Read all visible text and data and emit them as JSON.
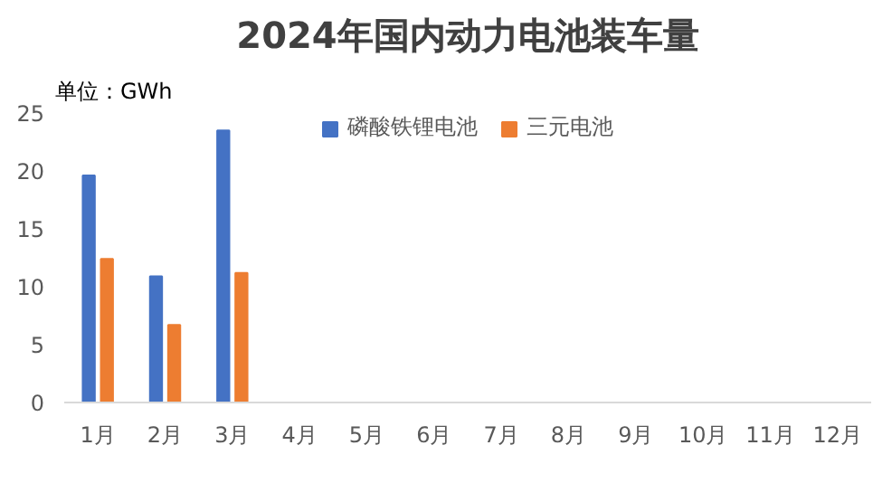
{
  "chart_data": {
    "type": "bar",
    "title": "2024年国内动力电池装车量",
    "annotations": [
      "单位：GWh"
    ],
    "categories": [
      "1月",
      "2月",
      "3月",
      "4月",
      "5月",
      "6月",
      "7月",
      "8月",
      "9月",
      "10月",
      "11月",
      "12月"
    ],
    "series": [
      {
        "name": "磷酸铁锂电池",
        "color": "#4472c4",
        "values": [
          19.6,
          10.9,
          23.5,
          null,
          null,
          null,
          null,
          null,
          null,
          null,
          null,
          null
        ]
      },
      {
        "name": "三元电池",
        "color": "#ed7d31",
        "values": [
          12.4,
          6.7,
          11.2,
          null,
          null,
          null,
          null,
          null,
          null,
          null,
          null,
          null
        ]
      }
    ],
    "ylim": [
      0,
      25
    ],
    "yticks": [
      0,
      5,
      10,
      15,
      20,
      25
    ],
    "grid": false,
    "legend": "top"
  }
}
